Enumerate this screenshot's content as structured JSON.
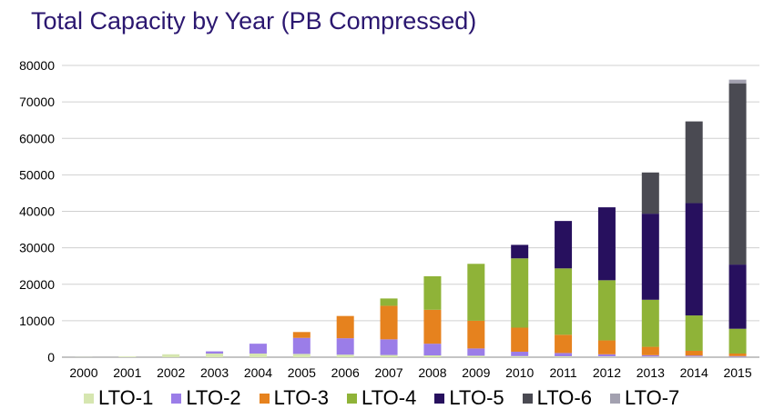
{
  "chart_data": {
    "type": "bar",
    "stacked": true,
    "title": "Total Capacity by Year (PB Compressed)",
    "xlabel": "",
    "ylabel": "",
    "ylim": [
      0,
      80000
    ],
    "yticks": [
      "0",
      "10000",
      "20000",
      "30000",
      "40000",
      "50000",
      "60000",
      "70000",
      "80000"
    ],
    "grid": true,
    "legend_position": "bottom",
    "categories": [
      "2000",
      "2001",
      "2002",
      "2003",
      "2004",
      "2005",
      "2006",
      "2007",
      "2008",
      "2009",
      "2010",
      "2011",
      "2012",
      "2013",
      "2014",
      "2015"
    ],
    "series": [
      {
        "name": "LTO-1",
        "color": "#d6e6b0",
        "values": [
          30,
          200,
          800,
          1000,
          1000,
          900,
          700,
          600,
          500,
          400,
          300,
          250,
          200,
          150,
          150,
          100
        ]
      },
      {
        "name": "LTO-2",
        "color": "#9b7de8",
        "values": [
          0,
          0,
          0,
          600,
          2700,
          4400,
          4500,
          4300,
          3200,
          2000,
          1200,
          900,
          600,
          400,
          300,
          200
        ]
      },
      {
        "name": "LTO-3",
        "color": "#e6821e",
        "values": [
          0,
          0,
          0,
          0,
          0,
          1600,
          6100,
          9200,
          9300,
          7600,
          6600,
          5000,
          3800,
          2300,
          1300,
          700
        ]
      },
      {
        "name": "LTO-4",
        "color": "#8fb338",
        "values": [
          0,
          0,
          0,
          0,
          0,
          0,
          0,
          2000,
          9200,
          15600,
          19000,
          18200,
          16500,
          12900,
          9700,
          6800
        ]
      },
      {
        "name": "LTO-5",
        "color": "#27105e",
        "values": [
          0,
          0,
          0,
          0,
          0,
          0,
          0,
          0,
          0,
          0,
          3700,
          13000,
          20000,
          23600,
          30800,
          17600
        ]
      },
      {
        "name": "LTO-6",
        "color": "#4a4a52",
        "values": [
          0,
          0,
          0,
          0,
          0,
          0,
          0,
          0,
          0,
          0,
          0,
          0,
          0,
          11300,
          22400,
          49700
        ]
      },
      {
        "name": "LTO-7",
        "color": "#a3a1b0",
        "values": [
          0,
          0,
          0,
          0,
          0,
          0,
          0,
          0,
          0,
          0,
          0,
          0,
          0,
          0,
          0,
          1000
        ]
      }
    ]
  }
}
